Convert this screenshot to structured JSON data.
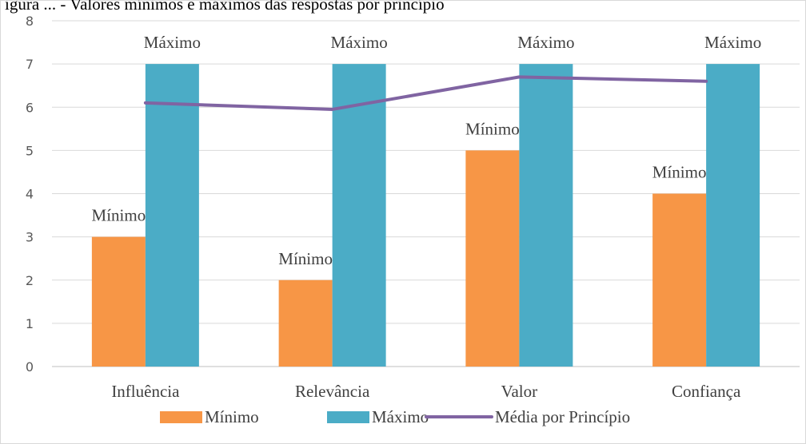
{
  "top_fragment": "igura ... - Valores mínimos e máximos das respostas por princípio",
  "chart_data": {
    "type": "bar",
    "categories": [
      "Influência",
      "Relevância",
      "Valor",
      "Confiança"
    ],
    "series": [
      {
        "name": "Mínimo",
        "kind": "bar",
        "color": "#F79646",
        "values": [
          3,
          2,
          5,
          4
        ],
        "data_labels": [
          "Mínimo",
          "Mínimo",
          "Mínimo",
          "Mínimo"
        ]
      },
      {
        "name": "Máximo",
        "kind": "bar",
        "color": "#4BACC6",
        "values": [
          7,
          7,
          7,
          7
        ],
        "data_labels": [
          "Máximo",
          "Máximo",
          "Máximo",
          "Máximo"
        ]
      },
      {
        "name": "Média por Princípio",
        "kind": "line",
        "color": "#8064A2",
        "values": [
          6.1,
          5.95,
          6.7,
          6.6
        ]
      }
    ],
    "title": "",
    "xlabel": "",
    "ylabel": "",
    "ylim": [
      0,
      8
    ],
    "yticks": [
      0,
      1,
      2,
      3,
      4,
      5,
      6,
      7,
      8
    ],
    "grid": true,
    "legend_position": "bottom"
  }
}
